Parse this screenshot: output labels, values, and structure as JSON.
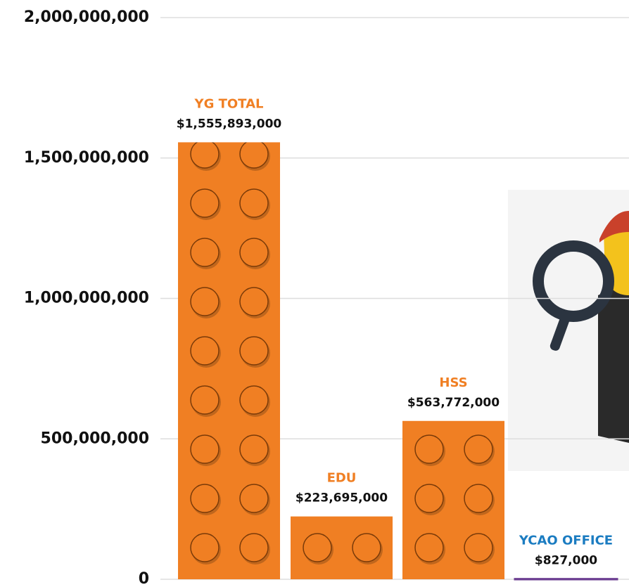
{
  "chart_data": {
    "type": "bar",
    "categories": [
      "YG TOTAL",
      "EDU",
      "HSS",
      "YCAO OFFICE"
    ],
    "values": [
      1555893000,
      223695000,
      563772000,
      827000
    ],
    "value_labels": [
      "$1,555,893,000",
      "$223,695,000",
      "$563,772,000",
      "$827,000"
    ],
    "colors": [
      "#f07f23",
      "#f07f23",
      "#f07f23",
      "#6b3d91"
    ],
    "label_colors": [
      "#f07f23",
      "#f07f23",
      "#f07f23",
      "#1b7cc1"
    ],
    "ylim": [
      0,
      2000000000
    ],
    "yticks": [
      {
        "value": 0,
        "label": "0"
      },
      {
        "value": 500000000,
        "label": "500,000,000"
      },
      {
        "value": 1000000000,
        "label": "1,000,000,000"
      },
      {
        "value": 1500000000,
        "label": "1,500,000,000"
      },
      {
        "value": 2000000000,
        "label": "2,000,000,000"
      }
    ],
    "grid": true
  }
}
